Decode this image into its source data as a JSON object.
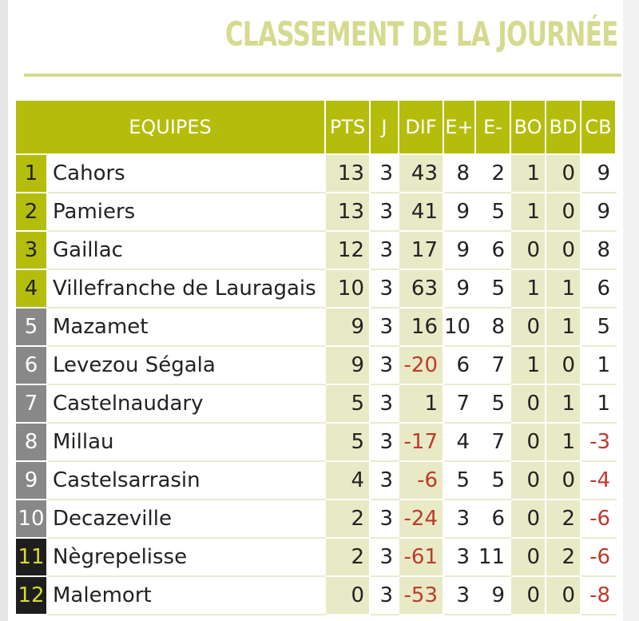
{
  "title": "CLASSEMENT DE LA JOURNÉE",
  "headers": {
    "team": "EQUIPES",
    "pts": "PTS",
    "j": "J",
    "dif": "DIF",
    "ep": "E+",
    "em": "E-",
    "bo": "BO",
    "bd": "BD",
    "cb": "CB"
  },
  "colors": {
    "accent": "#b5bd0c",
    "title": "#d5da8e",
    "shade": "#e7eac5",
    "negative": "#c0392b",
    "relegation": "#1e1e1e",
    "mid": "#888888"
  },
  "rows": [
    {
      "rank": "1",
      "team": "Cahors",
      "pts": "13",
      "j": "3",
      "dif": "43",
      "ep": "8",
      "em": "2",
      "bo": "1",
      "bd": "0",
      "cb": "9",
      "zone": "green"
    },
    {
      "rank": "2",
      "team": "Pamiers",
      "pts": "13",
      "j": "3",
      "dif": "41",
      "ep": "9",
      "em": "5",
      "bo": "1",
      "bd": "0",
      "cb": "9",
      "zone": "green"
    },
    {
      "rank": "3",
      "team": "Gaillac",
      "pts": "12",
      "j": "3",
      "dif": "17",
      "ep": "9",
      "em": "6",
      "bo": "0",
      "bd": "0",
      "cb": "8",
      "zone": "green"
    },
    {
      "rank": "4",
      "team": "Villefranche de Lauragais",
      "pts": "10",
      "j": "3",
      "dif": "63",
      "ep": "9",
      "em": "5",
      "bo": "1",
      "bd": "1",
      "cb": "6",
      "zone": "green"
    },
    {
      "rank": "5",
      "team": "Mazamet",
      "pts": "9",
      "j": "3",
      "dif": "16",
      "ep": "10",
      "em": "8",
      "bo": "0",
      "bd": "1",
      "cb": "5",
      "zone": "gray"
    },
    {
      "rank": "6",
      "team": "Levezou Ségala",
      "pts": "9",
      "j": "3",
      "dif": "-20",
      "ep": "6",
      "em": "7",
      "bo": "1",
      "bd": "0",
      "cb": "1",
      "zone": "gray"
    },
    {
      "rank": "7",
      "team": "Castelnaudary",
      "pts": "5",
      "j": "3",
      "dif": "1",
      "ep": "7",
      "em": "5",
      "bo": "0",
      "bd": "1",
      "cb": "1",
      "zone": "gray"
    },
    {
      "rank": "8",
      "team": "Millau",
      "pts": "5",
      "j": "3",
      "dif": "-17",
      "ep": "4",
      "em": "7",
      "bo": "0",
      "bd": "1",
      "cb": "-3",
      "zone": "gray"
    },
    {
      "rank": "9",
      "team": "Castelsarrasin",
      "pts": "4",
      "j": "3",
      "dif": "-6",
      "ep": "5",
      "em": "5",
      "bo": "0",
      "bd": "0",
      "cb": "-4",
      "zone": "gray"
    },
    {
      "rank": "10",
      "team": "Decazeville",
      "pts": "2",
      "j": "3",
      "dif": "-24",
      "ep": "3",
      "em": "6",
      "bo": "0",
      "bd": "2",
      "cb": "-6",
      "zone": "gray"
    },
    {
      "rank": "11",
      "team": "Nègrepelisse",
      "pts": "2",
      "j": "3",
      "dif": "-61",
      "ep": "3",
      "em": "11",
      "bo": "0",
      "bd": "2",
      "cb": "-6",
      "zone": "black"
    },
    {
      "rank": "12",
      "team": "Malemort",
      "pts": "0",
      "j": "3",
      "dif": "-53",
      "ep": "3",
      "em": "9",
      "bo": "0",
      "bd": "0",
      "cb": "-8",
      "zone": "black"
    }
  ]
}
